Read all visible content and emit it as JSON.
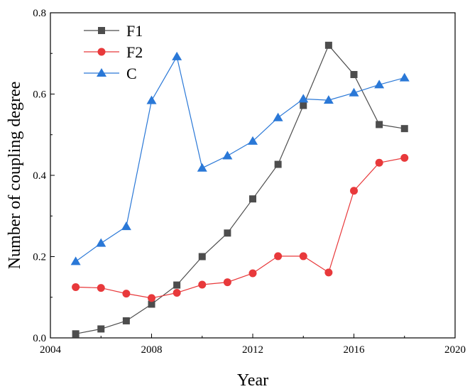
{
  "chart_data": {
    "type": "line",
    "title": "",
    "xlabel": "Year",
    "ylabel": "Number of coupling degree",
    "xlim": [
      2004,
      2020
    ],
    "ylim": [
      0,
      0.8
    ],
    "x_ticks": [
      2004,
      2008,
      2012,
      2016,
      2020
    ],
    "y_ticks": [
      0.0,
      0.2,
      0.4,
      0.6,
      0.8
    ],
    "x_tick_labels": [
      "2004",
      "2008",
      "2012",
      "2016",
      "2020"
    ],
    "y_tick_labels": [
      "0.0",
      "0.2",
      "0.4",
      "0.6",
      "0.8"
    ],
    "grid": false,
    "legend_position": "top-left",
    "x": [
      2005,
      2006,
      2007,
      2008,
      2009,
      2010,
      2011,
      2012,
      2013,
      2014,
      2015,
      2016,
      2017,
      2018
    ],
    "series": [
      {
        "name": "F1",
        "color": "#4d4d4d",
        "marker": "square",
        "values": [
          0.01,
          0.022,
          0.042,
          0.083,
          0.13,
          0.2,
          0.258,
          0.342,
          0.427,
          0.572,
          0.72,
          0.648,
          0.525,
          0.515
        ]
      },
      {
        "name": "F2",
        "color": "#e8393b",
        "marker": "circle",
        "values": [
          0.125,
          0.123,
          0.109,
          0.098,
          0.111,
          0.131,
          0.137,
          0.159,
          0.201,
          0.201,
          0.161,
          0.362,
          0.431,
          0.443
        ]
      },
      {
        "name": "C",
        "color": "#2a78d7",
        "marker": "triangle",
        "values": [
          0.188,
          0.233,
          0.274,
          0.584,
          0.692,
          0.418,
          0.448,
          0.484,
          0.542,
          0.588,
          0.585,
          0.603,
          0.623,
          0.64
        ]
      }
    ]
  }
}
